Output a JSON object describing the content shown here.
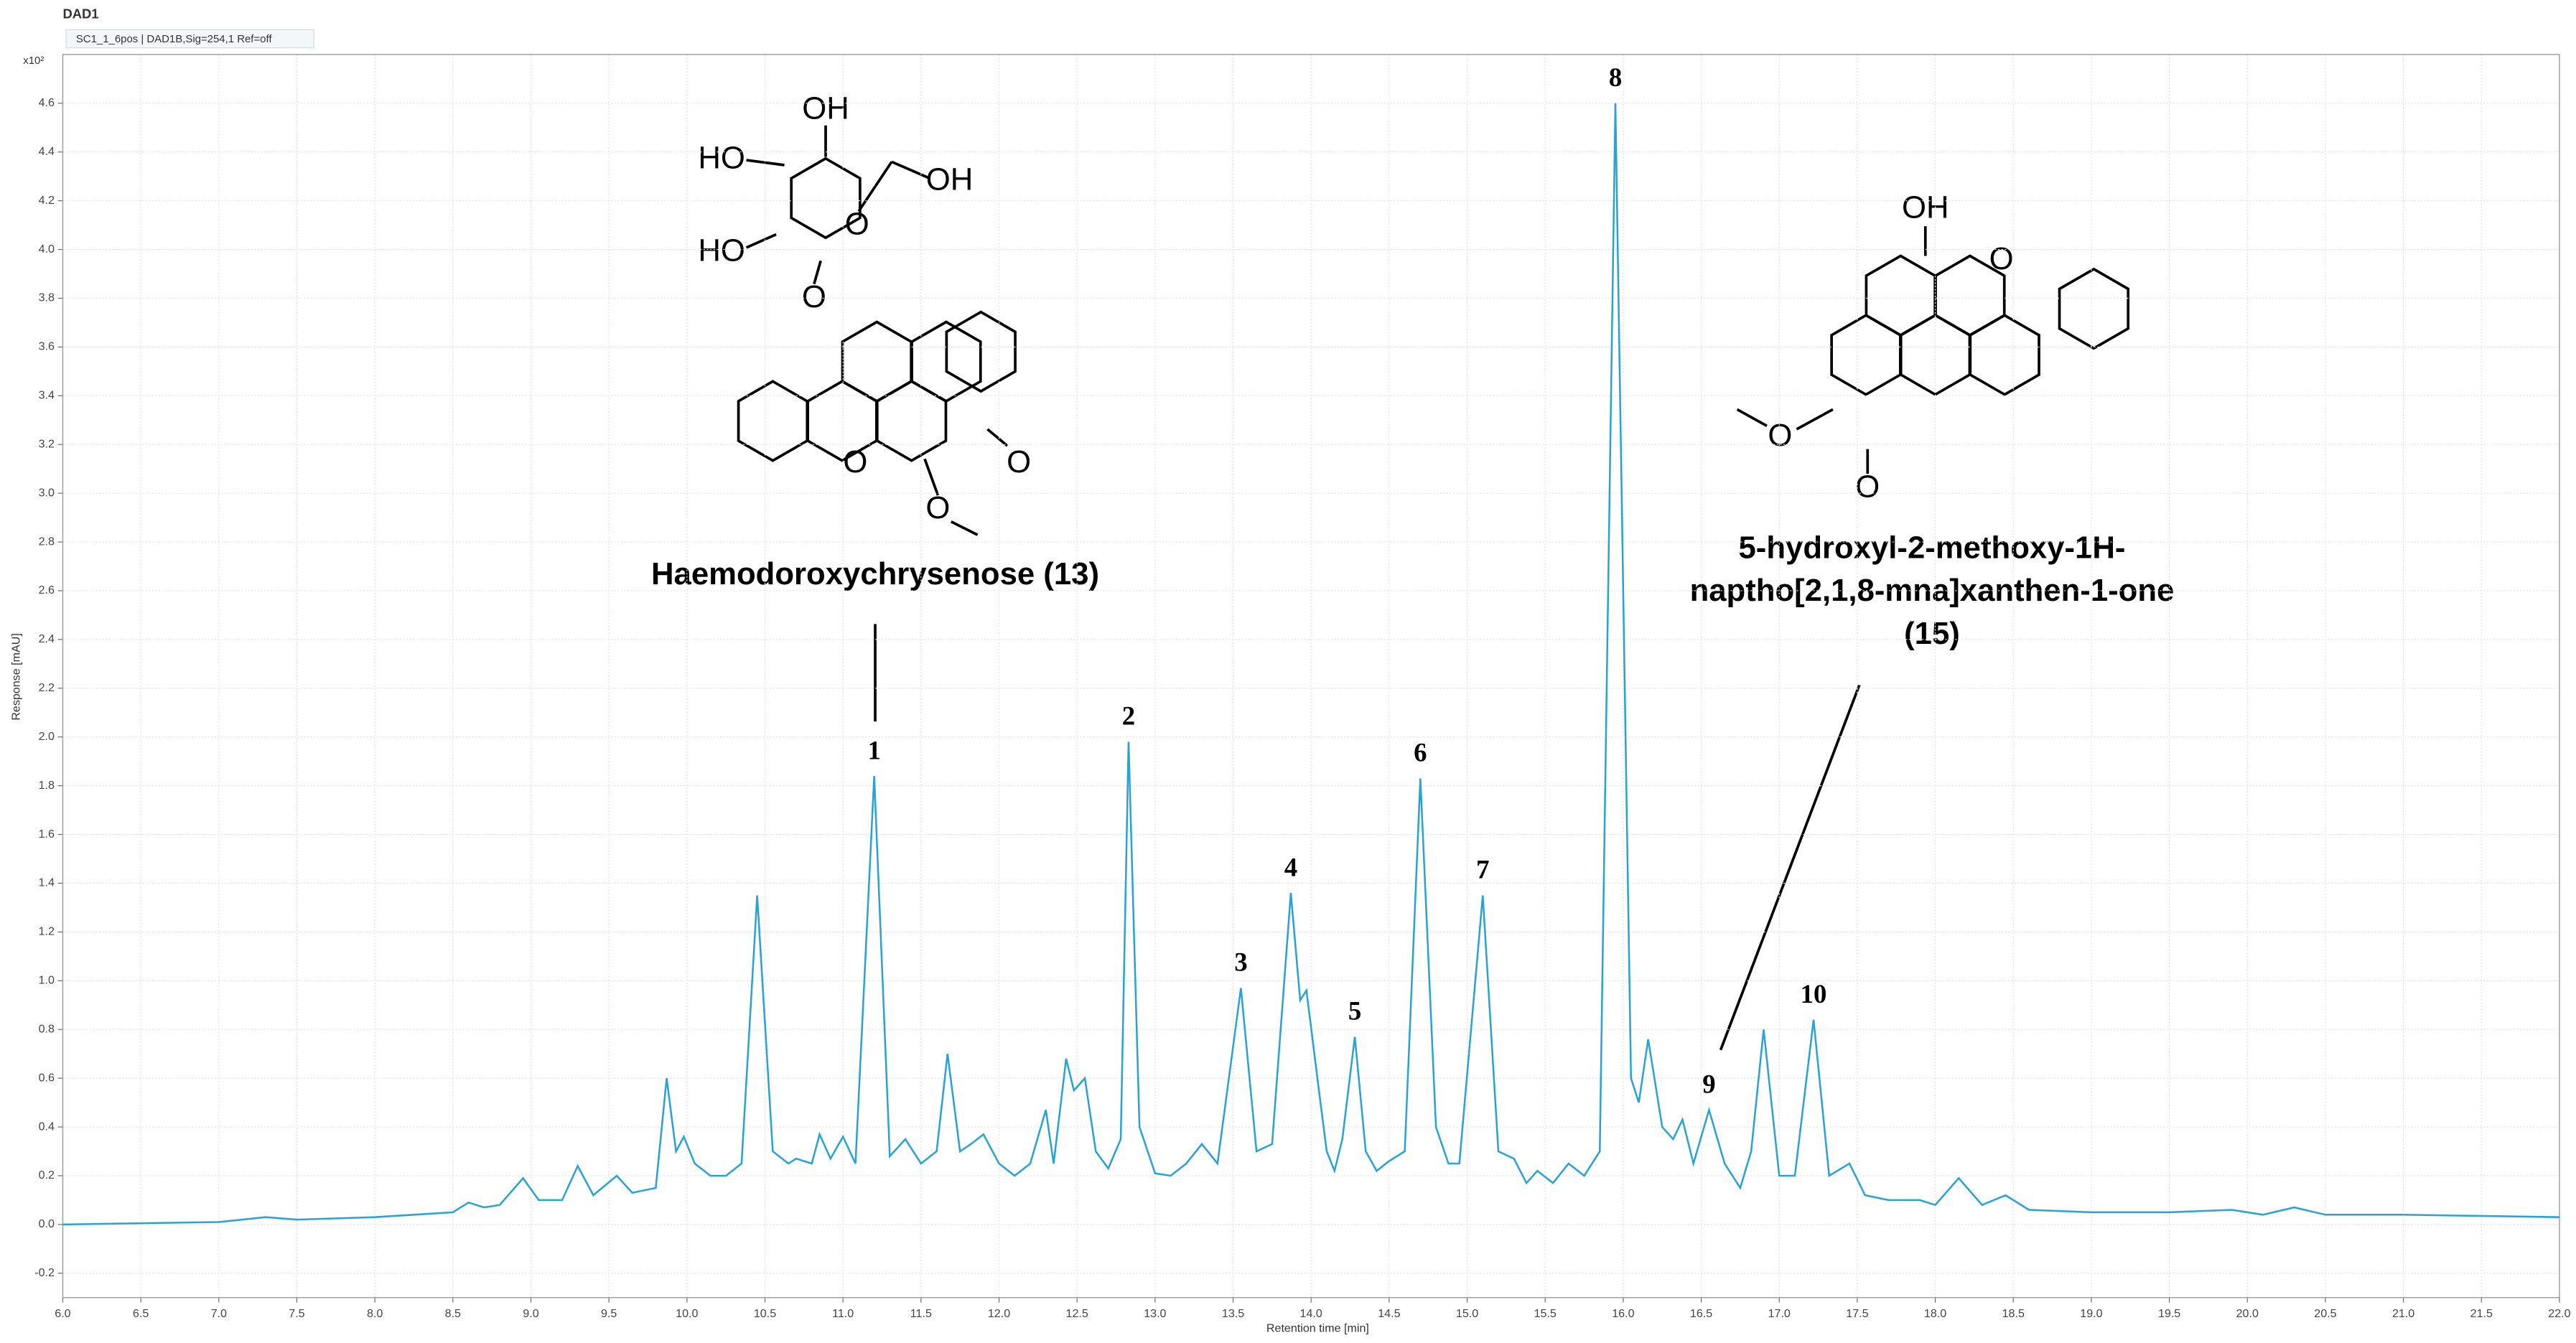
{
  "chart_data": {
    "type": "line",
    "title": "DAD1",
    "subtitle": "SC1_1_6pos | DAD1B,Sig=254,1 Ref=off",
    "y_multiplier": "x10²",
    "xlabel": "Retention time [min]",
    "ylabel": "Response [mAU]",
    "color": "#29a3d6",
    "grid": true,
    "xlim": [
      6,
      22
    ],
    "ylim": [
      -0.3,
      4.8
    ],
    "xticks": [
      {
        "value": 6,
        "label": "6.0"
      },
      6.5,
      {
        "value": 7,
        "label": "7.0"
      },
      7.5,
      {
        "value": 8,
        "label": "8.0"
      },
      8.5,
      {
        "value": 9,
        "label": "9.0"
      },
      9.5,
      {
        "value": 10,
        "label": "10.0"
      },
      10.5,
      {
        "value": 11,
        "label": "11.0"
      },
      11.5,
      {
        "value": 12,
        "label": "12.0"
      },
      12.5,
      {
        "value": 13,
        "label": "13.0"
      },
      13.5,
      {
        "value": 14,
        "label": "14.0"
      },
      14.5,
      {
        "value": 15,
        "label": "15.0"
      },
      15.5,
      {
        "value": 16,
        "label": "16.0"
      },
      16.5,
      {
        "value": 17,
        "label": "17.0"
      },
      17.5,
      {
        "value": 18,
        "label": "18.0"
      },
      18.5,
      {
        "value": 19,
        "label": "19.0"
      },
      19.5,
      {
        "value": 20,
        "label": "20.0"
      },
      20.5,
      {
        "value": 21,
        "label": "21.0"
      },
      21.5,
      {
        "value": 22,
        "label": "22.0"
      }
    ],
    "yticks": [
      -0.2,
      {
        "value": 0,
        "label": "0.0"
      },
      0.2,
      0.4,
      0.6,
      0.8,
      {
        "value": 1,
        "label": "1.0"
      },
      1.2,
      1.4,
      1.6,
      1.8,
      {
        "value": 2,
        "label": "2.0"
      },
      2.2,
      2.4,
      2.6,
      2.8,
      {
        "value": 3,
        "label": "3.0"
      },
      3.2,
      3.4,
      3.6,
      3.8,
      {
        "value": 4,
        "label": "4.0"
      },
      4.2,
      4.4,
      4.6
    ],
    "x": [
      6.0,
      7.0,
      7.3,
      7.5,
      8.0,
      8.5,
      8.6,
      8.7,
      8.8,
      8.95,
      9.05,
      9.2,
      9.3,
      9.4,
      9.55,
      9.65,
      9.8,
      9.87,
      9.93,
      9.98,
      10.05,
      10.15,
      10.25,
      10.35,
      10.45,
      10.55,
      10.65,
      10.7,
      10.8,
      10.85,
      10.92,
      11.0,
      11.08,
      11.2,
      11.3,
      11.4,
      11.5,
      11.6,
      11.67,
      11.75,
      11.82,
      11.9,
      12.0,
      12.1,
      12.2,
      12.3,
      12.35,
      12.43,
      12.48,
      12.55,
      12.62,
      12.7,
      12.78,
      12.83,
      12.9,
      13.0,
      13.1,
      13.2,
      13.3,
      13.4,
      13.55,
      13.65,
      13.75,
      13.87,
      13.93,
      13.97,
      14.05,
      14.1,
      14.15,
      14.2,
      14.28,
      14.35,
      14.42,
      14.5,
      14.6,
      14.7,
      14.8,
      14.88,
      14.95,
      15.1,
      15.2,
      15.3,
      15.38,
      15.45,
      15.55,
      15.65,
      15.75,
      15.85,
      15.95,
      16.05,
      16.1,
      16.16,
      16.25,
      16.32,
      16.38,
      16.45,
      16.55,
      16.65,
      16.75,
      16.82,
      16.9,
      17.0,
      17.1,
      17.22,
      17.32,
      17.45,
      17.55,
      17.7,
      17.9,
      18.0,
      18.15,
      18.3,
      18.45,
      18.6,
      19.0,
      19.5,
      19.9,
      20.1,
      20.3,
      20.5,
      21.0,
      22.0
    ],
    "values": [
      0.0,
      0.01,
      0.03,
      0.02,
      0.03,
      0.05,
      0.09,
      0.07,
      0.08,
      0.19,
      0.1,
      0.1,
      0.24,
      0.12,
      0.2,
      0.13,
      0.15,
      0.6,
      0.3,
      0.36,
      0.25,
      0.2,
      0.2,
      0.25,
      1.35,
      0.3,
      0.25,
      0.27,
      0.25,
      0.37,
      0.27,
      0.36,
      0.25,
      1.84,
      0.28,
      0.35,
      0.25,
      0.3,
      0.7,
      0.3,
      0.33,
      0.37,
      0.25,
      0.2,
      0.25,
      0.47,
      0.25,
      0.68,
      0.55,
      0.6,
      0.3,
      0.23,
      0.35,
      1.98,
      0.4,
      0.21,
      0.2,
      0.25,
      0.33,
      0.25,
      0.97,
      0.3,
      0.33,
      1.36,
      0.92,
      0.96,
      0.55,
      0.3,
      0.22,
      0.35,
      0.77,
      0.3,
      0.22,
      0.26,
      0.3,
      1.83,
      0.4,
      0.25,
      0.25,
      1.35,
      0.3,
      0.27,
      0.17,
      0.22,
      0.17,
      0.25,
      0.2,
      0.3,
      4.6,
      0.6,
      0.5,
      0.76,
      0.4,
      0.35,
      0.43,
      0.25,
      0.47,
      0.25,
      0.15,
      0.3,
      0.8,
      0.2,
      0.2,
      0.84,
      0.2,
      0.25,
      0.12,
      0.1,
      0.1,
      0.08,
      0.19,
      0.08,
      0.12,
      0.06,
      0.05,
      0.05,
      0.06,
      0.04,
      0.07,
      0.04,
      0.04,
      0.03
    ],
    "peak_labels": [
      {
        "text": "1",
        "x": 11.2
      },
      {
        "text": "2",
        "x": 12.83
      },
      {
        "text": "3",
        "x": 13.55
      },
      {
        "text": "4",
        "x": 13.87
      },
      {
        "text": "5",
        "x": 14.28
      },
      {
        "text": "6",
        "x": 14.7
      },
      {
        "text": "7",
        "x": 15.1
      },
      {
        "text": "8",
        "x": 15.95
      },
      {
        "text": "9",
        "x": 16.55
      },
      {
        "text": "10",
        "x": 17.22
      }
    ],
    "structures": [
      {
        "name": [
          "Haemodoroxychrysenose (13)"
        ],
        "atoms": [
          "OH",
          "HO",
          "OH",
          "HO",
          "O",
          "O",
          "O",
          "O",
          "O"
        ]
      },
      {
        "name": [
          "5-hydroxyl-2-methoxy-1H-",
          "naptho[2,1,8-mna]xanthen-1-one",
          "(15)"
        ],
        "atoms": [
          "OH",
          "O",
          "O",
          "O"
        ]
      }
    ]
  }
}
